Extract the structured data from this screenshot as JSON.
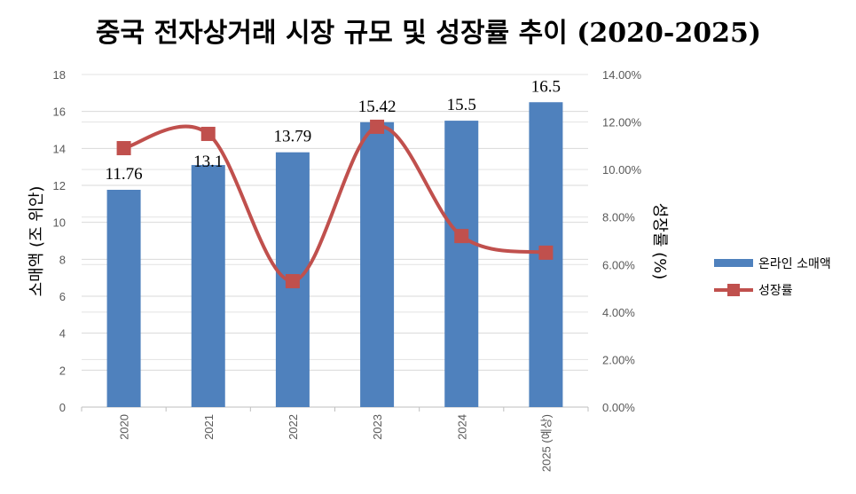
{
  "chart_data": {
    "type": "bar+line",
    "title": "중국 전자상거래 시장 규모 및 성장률 추이 (2020-2025)",
    "categories": [
      "2020",
      "2021",
      "2022",
      "2023",
      "2024",
      "2025 (예상)"
    ],
    "series": [
      {
        "name": "온라인 소매액",
        "type": "bar",
        "axis": "left",
        "color": "#4F81BD",
        "values": [
          11.76,
          13.1,
          13.79,
          15.42,
          15.5,
          16.5
        ],
        "data_labels": [
          "11.76",
          "13.1",
          "13.79",
          "15.42",
          "15.5",
          "16.5"
        ]
      },
      {
        "name": "성장률",
        "type": "line",
        "axis": "right",
        "smooth": true,
        "marker": "square",
        "color": "#C0504D",
        "values": [
          10.9,
          11.5,
          5.3,
          11.8,
          7.2,
          6.5
        ]
      }
    ],
    "ylabel": "소매액 (조 위안)",
    "ylabel_right": "성장률 (%)",
    "ylim": [
      0,
      18
    ],
    "yticks": [
      "0",
      "2",
      "4",
      "6",
      "8",
      "10",
      "12",
      "14",
      "16",
      "18"
    ],
    "ylim_right": [
      0,
      14
    ],
    "yticks_right": [
      "0.00%",
      "2.00%",
      "4.00%",
      "6.00%",
      "8.00%",
      "10.00%",
      "12.00%",
      "14.00%"
    ],
    "grid": true,
    "legend_position": "right"
  }
}
